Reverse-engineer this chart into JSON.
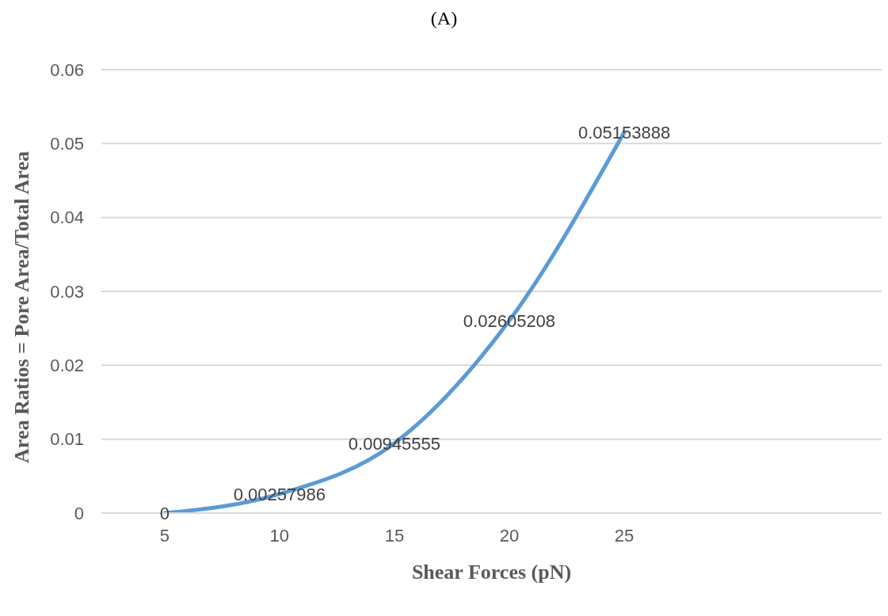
{
  "chart_data": {
    "type": "line",
    "title": "(A)",
    "xlabel": "Shear Forces (pN)",
    "ylabel": "Area Ratios = Pore Area/Total Area",
    "x": [
      5,
      10,
      15,
      20,
      25
    ],
    "series": [
      {
        "color": "#5b9bd5",
        "values": [
          0,
          0.00257986,
          0.00945555,
          0.02605208,
          0.05153888
        ]
      }
    ],
    "xlim": [
      2.25,
      36.2
    ],
    "xticks": [
      5,
      10,
      15,
      20,
      25
    ],
    "ylim": [
      0,
      0.06
    ],
    "yticks": [
      0,
      0.01,
      0.02,
      0.03,
      0.04,
      0.05,
      0.06
    ],
    "grid": "y",
    "data_labels": true,
    "marker": "none",
    "line_style": "solid",
    "legend": false
  }
}
